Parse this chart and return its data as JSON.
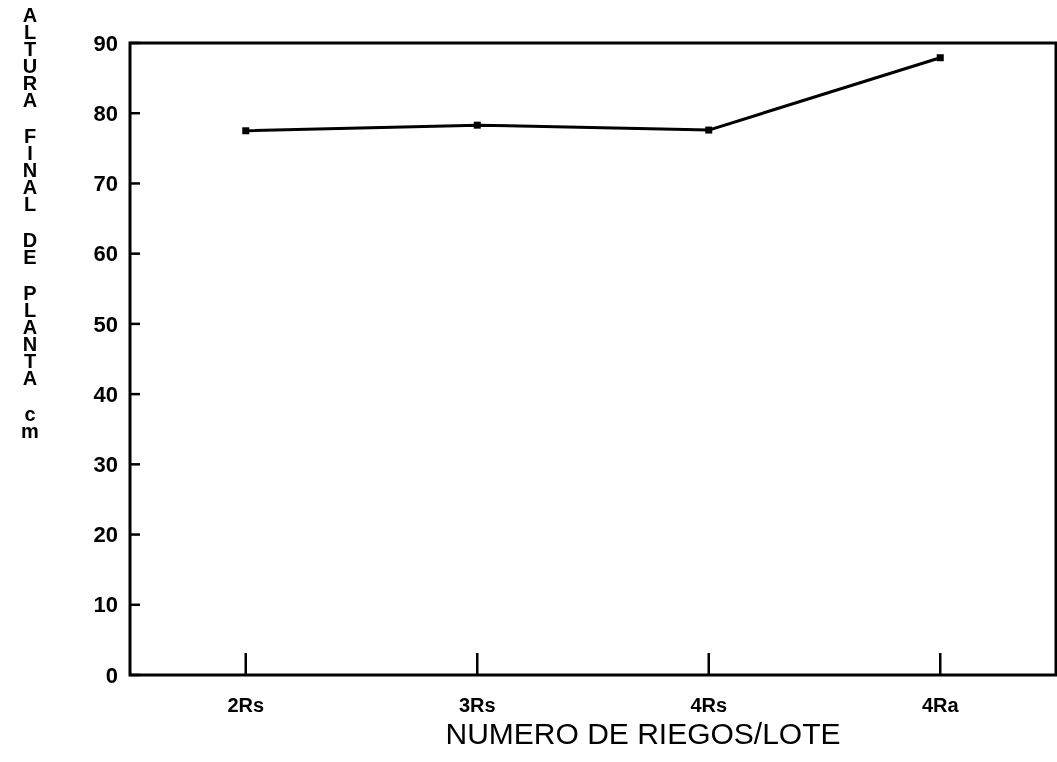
{
  "chart_data": {
    "type": "line",
    "xlabel": "NUMERO DE RIEGOS/LOTE",
    "ylabel": "ALTURA FINAL DE PLANTA cm",
    "categories": [
      "2Rs",
      "3Rs",
      "4Rs",
      "4Ra"
    ],
    "series": [
      {
        "color": "#000000",
        "values": [
          77.5,
          78.3,
          77.6,
          87.9
        ]
      }
    ],
    "ylim": [
      0,
      90
    ],
    "yticks": [
      0,
      10,
      20,
      30,
      40,
      50,
      60,
      70,
      80,
      90
    ],
    "grid": false,
    "marker": "square",
    "line_style": "solid"
  }
}
